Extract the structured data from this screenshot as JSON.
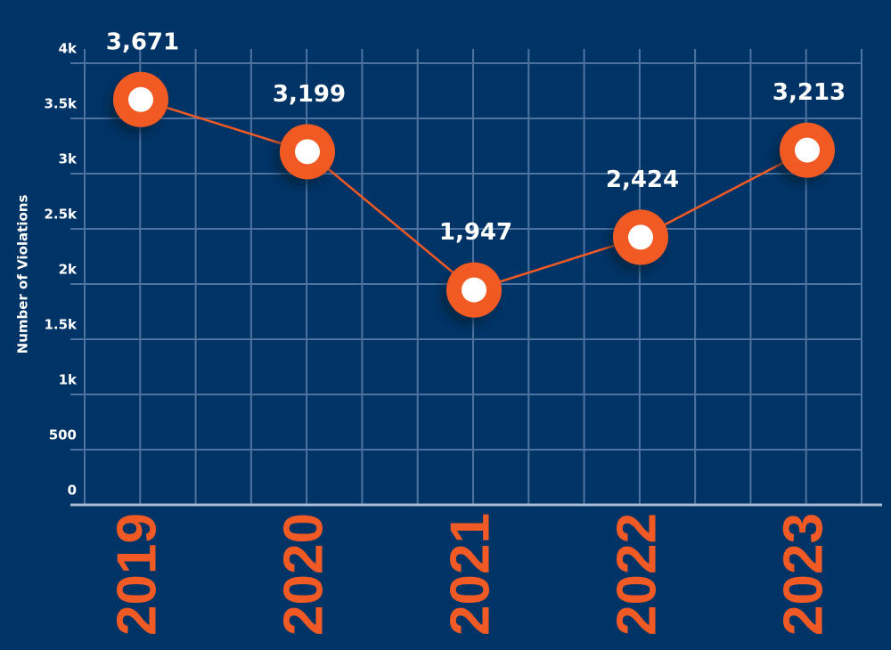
{
  "chart_data": {
    "type": "line",
    "y_label": "Number of Violations",
    "categories": [
      "2019",
      "2020",
      "2021",
      "2022",
      "2023"
    ],
    "values": [
      3671,
      3199,
      1947,
      2424,
      3213
    ],
    "value_labels": [
      "3,671",
      "3,199",
      "1,947",
      "2,424",
      "3,213"
    ],
    "color": "#f15a24",
    "ylim": [
      0,
      4000
    ],
    "yticks": [
      0,
      500,
      {
        "value": 1000,
        "label": "1k"
      },
      {
        "value": 1500,
        "label": "1.5k"
      },
      {
        "value": 2000,
        "label": "2k"
      },
      {
        "value": 2500,
        "label": "2.5k"
      },
      {
        "value": 3000,
        "label": "3k"
      },
      {
        "value": 3500,
        "label": "3.5k"
      },
      {
        "value": 4000,
        "label": "4k"
      }
    ],
    "grid": true
  }
}
